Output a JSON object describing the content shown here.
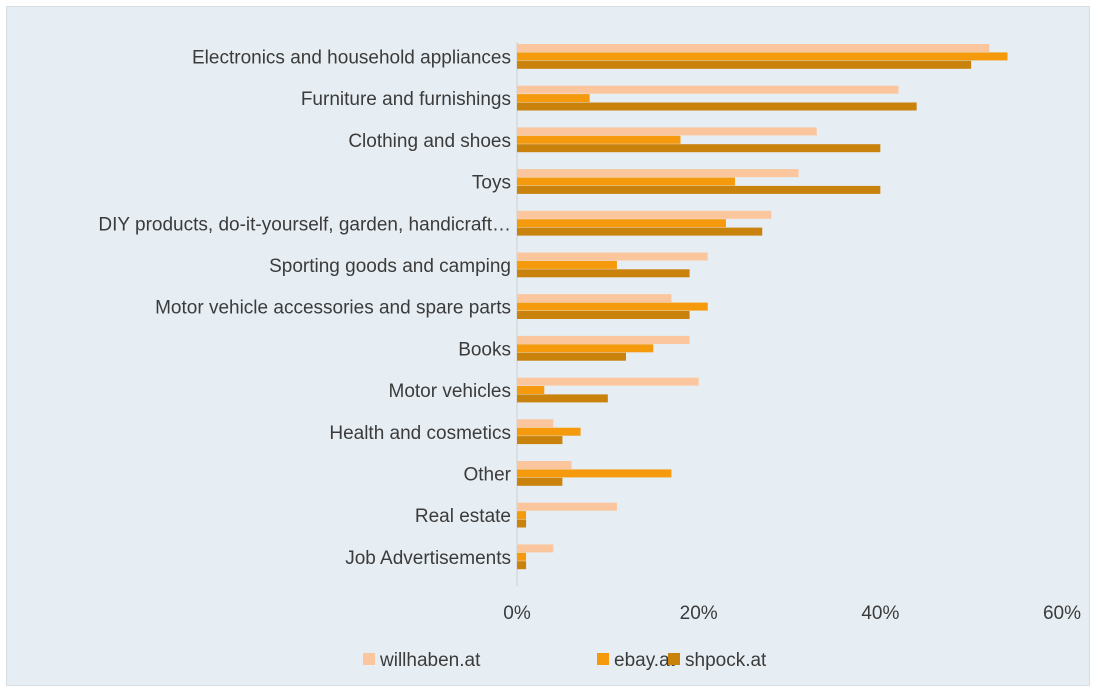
{
  "chart_data": {
    "type": "bar",
    "orientation": "horizontal",
    "title": "",
    "xlabel": "",
    "ylabel": "",
    "xlim": [
      0,
      60
    ],
    "x_ticks": [
      "0%",
      "20%",
      "40%",
      "60%"
    ],
    "x_tick_values": [
      0,
      20,
      40,
      60
    ],
    "grid": false,
    "legend_position": "bottom",
    "categories": [
      "Electronics and household appliances",
      "Furniture and furnishings",
      "Clothing and shoes",
      "Toys",
      "DIY products, do-it-yourself, garden, handicraft…",
      "Sporting goods and camping",
      "Motor vehicle accessories and spare parts",
      "Books",
      "Motor vehicles",
      "Health and cosmetics",
      "Other",
      "Real estate",
      "Job Advertisements"
    ],
    "series": [
      {
        "name": "willhaben.at",
        "color": "#fbc59e",
        "values": [
          52,
          42,
          33,
          31,
          28,
          21,
          17,
          19,
          20,
          4,
          6,
          11,
          4
        ]
      },
      {
        "name": "ebay.at",
        "color": "#f59a0c",
        "values": [
          54,
          8,
          18,
          24,
          23,
          11,
          21,
          15,
          3,
          7,
          17,
          1,
          1
        ]
      },
      {
        "name": "shpock.at",
        "color": "#c9820c",
        "values": [
          50,
          44,
          40,
          40,
          27,
          19,
          19,
          12,
          10,
          5,
          5,
          1,
          1
        ]
      }
    ]
  }
}
